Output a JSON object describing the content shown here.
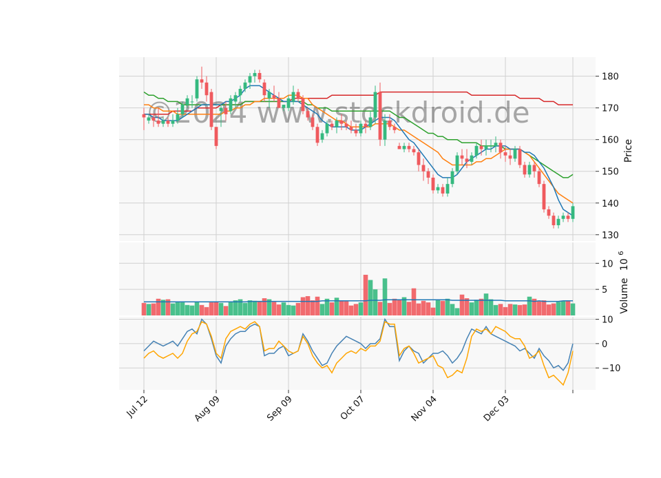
{
  "watermark": "©2024 www.stockdroid.de",
  "x_tick_labels": [
    "Jul 12",
    "Aug 09",
    "Sep 09",
    "Oct 07",
    "Nov 04",
    "Dec 03"
  ],
  "price_label": "Price",
  "volume_label": "Volume",
  "volume_exponent": "10",
  "volume_exponent_power": "6",
  "colors": {
    "up": "#35b97f",
    "down": "#ef5a5e",
    "ma_short": "#1f77b4",
    "ma_mid": "#ff7f0e",
    "ma_long1": "#2ca02c",
    "ma_long2": "#d62728",
    "osc1": "#4682b4",
    "osc2": "#ffa500",
    "grid": "#d0d0d0",
    "panel_bg": "#f8f8f8"
  },
  "chart_data": [
    {
      "type": "candlestick",
      "panel": "price",
      "ylabel": "Price",
      "ylim": [
        128,
        186
      ],
      "yticks": [
        130,
        140,
        150,
        160,
        170,
        180
      ],
      "grid": true,
      "ohlc": [
        [
          168,
          170,
          163,
          167
        ],
        [
          166,
          168,
          165,
          167
        ],
        [
          167,
          168,
          164,
          166
        ],
        [
          166,
          170,
          164,
          165
        ],
        [
          165,
          167,
          164,
          166
        ],
        [
          166,
          167,
          164,
          165
        ],
        [
          165,
          168,
          164,
          166
        ],
        [
          166,
          170,
          165,
          168
        ],
        [
          168,
          172,
          167,
          171
        ],
        [
          171,
          174,
          170,
          173
        ],
        [
          172,
          174,
          170,
          172
        ],
        [
          173,
          180,
          172,
          179
        ],
        [
          179,
          183,
          176,
          178
        ],
        [
          178,
          180,
          172,
          174
        ],
        [
          175,
          176,
          163,
          164
        ],
        [
          164,
          164,
          157,
          158
        ],
        [
          169,
          171,
          164,
          170
        ],
        [
          170,
          172,
          166,
          168
        ],
        [
          169,
          174,
          168,
          173
        ],
        [
          172,
          175,
          170,
          174
        ],
        [
          174,
          177,
          172,
          176
        ],
        [
          176,
          179,
          175,
          178
        ],
        [
          178,
          181,
          176,
          180
        ],
        [
          180,
          182,
          178,
          181
        ],
        [
          181,
          182,
          178,
          179
        ],
        [
          178,
          179,
          172,
          174
        ],
        [
          173,
          176,
          170,
          175
        ],
        [
          174,
          177,
          172,
          173
        ],
        [
          173,
          175,
          170,
          170
        ],
        [
          170,
          171,
          169,
          171
        ],
        [
          170,
          174,
          169,
          173
        ],
        [
          172,
          177,
          171,
          175
        ],
        [
          175,
          176,
          172,
          173
        ],
        [
          173,
          174,
          168,
          169
        ],
        [
          169,
          170,
          166,
          167
        ],
        [
          167,
          168,
          163,
          164
        ],
        [
          164,
          165,
          158,
          159
        ],
        [
          160,
          163,
          159,
          162
        ],
        [
          162,
          166,
          161,
          165
        ],
        [
          165,
          166,
          163,
          164
        ],
        [
          164,
          167,
          162,
          166
        ],
        [
          166,
          168,
          163,
          165
        ],
        [
          165,
          166,
          163,
          164
        ],
        [
          164,
          166,
          162,
          163
        ],
        [
          163,
          165,
          161,
          162
        ],
        [
          162,
          166,
          161,
          165
        ],
        [
          165,
          166,
          162,
          164
        ],
        [
          164,
          169,
          163,
          167
        ],
        [
          167,
          177,
          165,
          175
        ],
        [
          175,
          178,
          158,
          160
        ],
        [
          160,
          168,
          158,
          166
        ],
        [
          166,
          168,
          163,
          164
        ],
        [
          164,
          165,
          162,
          163
        ],
        [
          158,
          159,
          157,
          157
        ],
        [
          157,
          159,
          156,
          158
        ],
        [
          158,
          159,
          156,
          157
        ],
        [
          157,
          158,
          155,
          156
        ],
        [
          156,
          157,
          150,
          152
        ],
        [
          152,
          154,
          147,
          150
        ],
        [
          150,
          151,
          146,
          148
        ],
        [
          148,
          149,
          143,
          144
        ],
        [
          144,
          146,
          143,
          145
        ],
        [
          145,
          146,
          142,
          143
        ],
        [
          143,
          148,
          142,
          146
        ],
        [
          146,
          151,
          145,
          150
        ],
        [
          150,
          156,
          149,
          155
        ],
        [
          155,
          157,
          152,
          154
        ],
        [
          154,
          157,
          151,
          153
        ],
        [
          153,
          156,
          152,
          155
        ],
        [
          155,
          159,
          154,
          158
        ],
        [
          158,
          160,
          155,
          157
        ],
        [
          157,
          160,
          155,
          158
        ],
        [
          158,
          160,
          156,
          158
        ],
        [
          158,
          161,
          156,
          159
        ],
        [
          159,
          160,
          154,
          156
        ],
        [
          156,
          158,
          153,
          155
        ],
        [
          155,
          157,
          152,
          154
        ],
        [
          154,
          158,
          153,
          157
        ],
        [
          157,
          158,
          151,
          152
        ],
        [
          152,
          153,
          148,
          149
        ],
        [
          149,
          153,
          148,
          152
        ],
        [
          152,
          153,
          148,
          150
        ],
        [
          150,
          151,
          145,
          146
        ],
        [
          146,
          147,
          137,
          138
        ],
        [
          138,
          139,
          135,
          136
        ],
        [
          136,
          137,
          132,
          133
        ],
        [
          133,
          136,
          132,
          135
        ],
        [
          135,
          137,
          134,
          136
        ],
        [
          136,
          137,
          134,
          135
        ],
        [
          135,
          140,
          134,
          139
        ]
      ],
      "ma_short": [
        168,
        168,
        167,
        167,
        166,
        166,
        166,
        166,
        167,
        168,
        169,
        170,
        171,
        171,
        171,
        171,
        171,
        172,
        172,
        173,
        174,
        176,
        177,
        177,
        177,
        176,
        175,
        174,
        173,
        172,
        172,
        172,
        172,
        171,
        170,
        169,
        168,
        166,
        165,
        164,
        164,
        164,
        164,
        163,
        163,
        163,
        164,
        165,
        166,
        167,
        167,
        167,
        166,
        164,
        162,
        160,
        159,
        157,
        155,
        153,
        151,
        149,
        148,
        148,
        148,
        149,
        151,
        153,
        154,
        155,
        156,
        157,
        157,
        158,
        158,
        158,
        157,
        157,
        157,
        156,
        156,
        155,
        153,
        151,
        148,
        145,
        141,
        138,
        137,
        136
      ],
      "ma_mid": [
        171,
        171,
        170,
        170,
        169,
        169,
        169,
        168,
        168,
        168,
        168,
        168,
        168,
        168,
        168,
        168,
        168,
        169,
        169,
        170,
        170,
        171,
        171,
        172,
        172,
        173,
        173,
        173,
        173,
        173,
        174,
        174,
        174,
        173,
        173,
        171,
        170,
        169,
        168,
        167,
        166,
        166,
        165,
        164,
        164,
        164,
        164,
        164,
        165,
        165,
        165,
        165,
        164,
        163,
        163,
        162,
        161,
        160,
        159,
        158,
        157,
        156,
        154,
        153,
        152,
        152,
        152,
        152,
        152,
        153,
        153,
        154,
        154,
        155,
        156,
        157,
        157,
        157,
        157,
        156,
        155,
        153,
        151,
        149,
        147,
        145,
        143,
        142,
        141,
        140
      ],
      "ma_long1": [
        175,
        174,
        174,
        173,
        173,
        172,
        172,
        172,
        171,
        171,
        171,
        171,
        171,
        171,
        171,
        171,
        171,
        171,
        171,
        171,
        171,
        172,
        172,
        172,
        172,
        172,
        172,
        172,
        172,
        172,
        172,
        172,
        172,
        172,
        171,
        171,
        170,
        170,
        170,
        169,
        169,
        169,
        169,
        169,
        169,
        169,
        169,
        169,
        169,
        169,
        169,
        169,
        168,
        167,
        167,
        166,
        165,
        164,
        163,
        162,
        162,
        161,
        161,
        160,
        160,
        160,
        159,
        159,
        159,
        159,
        158,
        158,
        158,
        158,
        158,
        157,
        157,
        157,
        157,
        156,
        155,
        154,
        153,
        152,
        151,
        150,
        149,
        148,
        148,
        149
      ],
      "ma_long2": [
        168,
        168,
        168,
        168,
        168,
        168,
        169,
        169,
        169,
        169,
        169,
        170,
        170,
        170,
        170,
        170,
        171,
        171,
        171,
        171,
        171,
        172,
        172,
        172,
        172,
        172,
        172,
        172,
        172,
        172,
        172,
        173,
        173,
        173,
        173,
        173,
        173,
        173,
        173,
        174,
        174,
        174,
        174,
        174,
        174,
        174,
        174,
        174,
        174,
        175,
        175,
        175,
        175,
        175,
        175,
        175,
        175,
        175,
        175,
        175,
        175,
        175,
        175,
        175,
        175,
        175,
        175,
        175,
        174,
        174,
        174,
        174,
        174,
        174,
        174,
        174,
        174,
        174,
        173,
        173,
        173,
        173,
        173,
        172,
        172,
        172,
        171,
        171,
        171,
        171
      ]
    },
    {
      "type": "bar",
      "panel": "volume",
      "ylabel": "Volume",
      "ylim": [
        0,
        14
      ],
      "yticks": [
        5,
        10
      ],
      "values": [
        2.4,
        2.2,
        2.3,
        3.2,
        3.0,
        3.1,
        2.3,
        2.6,
        2.5,
        2.0,
        1.9,
        2.7,
        2.0,
        1.6,
        2.5,
        2.7,
        2.4,
        1.8,
        2.7,
        2.9,
        3.1,
        2.4,
        2.9,
        2.8,
        2.7,
        3.3,
        3.1,
        2.6,
        2.1,
        2.5,
        2.0,
        1.9,
        2.4,
        3.5,
        3.7,
        2.9,
        3.6,
        2.2,
        3.2,
        2.5,
        3.4,
        2.8,
        2.7,
        1.9,
        2.2,
        2.5,
        7.8,
        6.8,
        5.0,
        2.6,
        7.1,
        2.4,
        3.2,
        3.0,
        3.5,
        2.6,
        5.2,
        2.3,
        2.8,
        2.5,
        1.5,
        2.9,
        2.8,
        3.2,
        2.2,
        1.4,
        4.0,
        3.3,
        2.5,
        3.0,
        3.2,
        4.2,
        3.1,
        2.0,
        2.2,
        1.6,
        2.2,
        2.1,
        2.0,
        2.1,
        3.6,
        3.2,
        2.7,
        2.9,
        2.1,
        2.3,
        2.6,
        2.7,
        2.9,
        2.3
      ],
      "volume_ma": [
        2.6,
        2.6,
        2.6,
        2.6,
        2.6,
        2.6,
        2.6,
        2.6,
        2.6,
        2.6,
        2.6,
        2.6,
        2.6,
        2.6,
        2.6,
        2.6,
        2.6,
        2.6,
        2.6,
        2.6,
        2.6,
        2.6,
        2.7,
        2.7,
        2.7,
        2.7,
        2.7,
        2.7,
        2.7,
        2.7,
        2.7,
        2.7,
        2.7,
        2.7,
        2.7,
        2.7,
        2.7,
        2.8,
        2.8,
        2.8,
        2.8,
        2.8,
        2.8,
        2.8,
        2.8,
        2.8,
        2.8,
        2.9,
        2.9,
        2.9,
        3.0,
        3.0,
        3.0,
        3.0,
        3.0,
        3.0,
        3.0,
        3.0,
        3.0,
        3.0,
        3.0,
        3.0,
        3.0,
        3.0,
        2.9,
        2.9,
        2.9,
        2.9,
        2.9,
        2.9,
        2.9,
        2.9,
        2.9,
        2.9,
        2.9,
        2.8,
        2.8,
        2.8,
        2.8,
        2.8,
        2.8,
        2.7,
        2.8,
        2.7,
        2.7,
        2.7,
        2.7,
        2.8,
        2.8,
        2.8
      ]
    },
    {
      "type": "line",
      "panel": "oscillator",
      "ylim": [
        -19,
        11
      ],
      "yticks": [
        10,
        0,
        -10
      ],
      "series": [
        {
          "values": [
            -3,
            -1,
            1,
            0,
            -1,
            0,
            1,
            -1,
            2,
            5,
            6,
            4,
            10,
            8,
            2,
            -5,
            -8,
            -1,
            2,
            4,
            5,
            5,
            7,
            8,
            7,
            -5,
            -4,
            -4,
            -2,
            -1,
            -5,
            -4,
            -3,
            4,
            1,
            -3,
            -6,
            -9,
            -8,
            -4,
            -1,
            1,
            3,
            2,
            1,
            0,
            -2,
            0,
            0,
            2,
            10,
            7,
            7,
            -7,
            -3,
            -1,
            -3,
            -4,
            -8,
            -6,
            -4,
            -4,
            -3,
            -5,
            -8,
            -6,
            -3,
            2,
            6,
            5,
            4,
            7,
            4,
            3,
            2,
            1,
            0,
            -1,
            -3,
            -2,
            -4,
            -6,
            -2,
            -5,
            -7,
            -10,
            -9,
            -11,
            -8,
            0
          ]
        },
        {
          "values": [
            -6,
            -4,
            -3,
            -5,
            -6,
            -5,
            -4,
            -6,
            -4,
            1,
            4,
            5,
            9,
            8,
            3,
            -4,
            -6,
            2,
            5,
            6,
            7,
            6,
            8,
            9,
            7,
            -3,
            -2,
            -2,
            1,
            -1,
            -3,
            -4,
            -3,
            3,
            0,
            -5,
            -8,
            -10,
            -9,
            -12,
            -8,
            -6,
            -4,
            -3,
            -4,
            -2,
            -3,
            -1,
            -1,
            1,
            9,
            8,
            8,
            -5,
            -2,
            -1,
            -4,
            -8,
            -7,
            -6,
            -5,
            -9,
            -10,
            -14,
            -13,
            -11,
            -12,
            -6,
            3,
            6,
            5,
            6,
            4,
            7,
            6,
            5,
            3,
            2,
            2,
            -1,
            -6,
            -5,
            -3,
            -9,
            -14,
            -13,
            -15,
            -17,
            -12,
            -3
          ]
        }
      ]
    }
  ]
}
